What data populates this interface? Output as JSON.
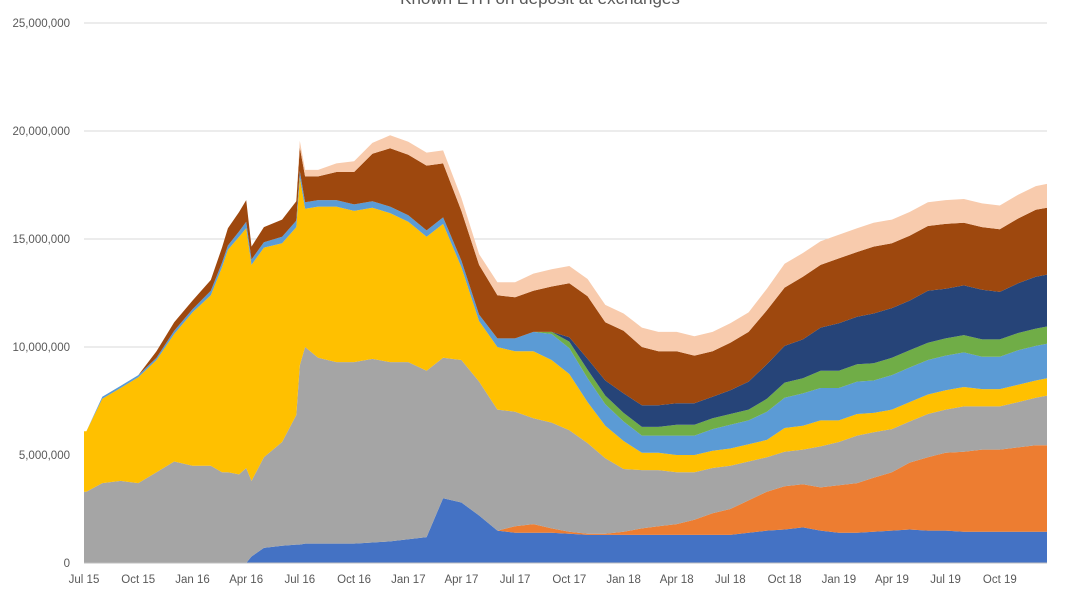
{
  "chart_data": {
    "type": "area",
    "stacked": true,
    "title": "Known ETH on deposit at exchanges",
    "xlabel": "",
    "ylabel": "",
    "ylim": [
      0,
      25000000
    ],
    "yticks": [
      0,
      5000000,
      10000000,
      15000000,
      20000000,
      25000000
    ],
    "ytick_labels": [
      "0",
      "5,000,000",
      "10,000,000",
      "15,000,000",
      "20,000,000",
      "25,000,000"
    ],
    "xlim": [
      "2015-07-01",
      "2019-12-20"
    ],
    "xtick_labels": [
      "Jul 15",
      "Oct 15",
      "Jan 16",
      "Apr 16",
      "Jul 16",
      "Oct 16",
      "Jan 17",
      "Apr 17",
      "Jul 17",
      "Oct 17",
      "Jan 18",
      "Apr 18",
      "Jul 18",
      "Oct 18",
      "Jan 19",
      "Apr 19",
      "Jul 19",
      "Oct 19"
    ],
    "xtick_dates": [
      "2015-07-01",
      "2015-10-01",
      "2016-01-01",
      "2016-04-01",
      "2016-07-01",
      "2016-10-01",
      "2017-01-01",
      "2017-04-01",
      "2017-07-01",
      "2017-10-01",
      "2018-01-01",
      "2018-04-01",
      "2018-07-01",
      "2018-10-01",
      "2019-01-01",
      "2019-04-01",
      "2019-07-01",
      "2019-10-01"
    ],
    "grid": "horizontal",
    "legend": "none",
    "x": [
      "2015-07-01",
      "2015-07-05",
      "2015-08-01",
      "2015-09-01",
      "2015-10-01",
      "2015-11-01",
      "2015-12-01",
      "2016-01-01",
      "2016-02-01",
      "2016-02-20",
      "2016-03-01",
      "2016-03-20",
      "2016-04-01",
      "2016-04-10",
      "2016-05-01",
      "2016-06-01",
      "2016-06-25",
      "2016-07-01",
      "2016-07-10",
      "2016-08-01",
      "2016-09-01",
      "2016-10-01",
      "2016-11-01",
      "2016-12-01",
      "2017-01-01",
      "2017-02-01",
      "2017-03-01",
      "2017-04-01",
      "2017-05-01",
      "2017-06-01",
      "2017-07-01",
      "2017-08-01",
      "2017-09-01",
      "2017-10-01",
      "2017-11-01",
      "2017-12-01",
      "2018-01-01",
      "2018-02-01",
      "2018-03-01",
      "2018-04-01",
      "2018-05-01",
      "2018-06-01",
      "2018-07-01",
      "2018-08-01",
      "2018-09-01",
      "2018-10-01",
      "2018-11-01",
      "2018-12-01",
      "2019-01-01",
      "2019-02-01",
      "2019-03-01",
      "2019-04-01",
      "2019-05-01",
      "2019-06-01",
      "2019-07-01",
      "2019-08-01",
      "2019-09-01",
      "2019-10-01",
      "2019-11-01",
      "2019-12-01",
      "2019-12-20"
    ],
    "series_colors": [
      "#4472C4",
      "#ED7D31",
      "#A5A5A5",
      "#FFC000",
      "#5B9BD5",
      "#70AD47",
      "#264478",
      "#9E480E",
      "#F8CBAD"
    ],
    "series": [
      {
        "values": [
          0,
          0,
          0,
          0,
          0,
          0,
          0,
          0,
          0,
          0,
          0,
          0,
          0,
          300000,
          700000,
          800000,
          850000,
          850000,
          900000,
          900000,
          900000,
          900000,
          950000,
          1000000,
          1100000,
          1200000,
          3000000,
          2800000,
          2200000,
          1500000,
          1400000,
          1400000,
          1400000,
          1350000,
          1300000,
          1300000,
          1300000,
          1300000,
          1300000,
          1300000,
          1300000,
          1300000,
          1300000,
          1400000,
          1500000,
          1550000,
          1650000,
          1500000,
          1400000,
          1400000,
          1450000,
          1500000,
          1550000,
          1500000,
          1500000,
          1450000,
          1450000,
          1450000,
          1450000,
          1450000,
          1450000
        ]
      },
      {
        "values": [
          0,
          0,
          0,
          0,
          0,
          0,
          0,
          0,
          0,
          0,
          0,
          0,
          0,
          0,
          0,
          0,
          0,
          0,
          0,
          0,
          0,
          0,
          0,
          0,
          0,
          0,
          0,
          0,
          0,
          0,
          300000,
          400000,
          200000,
          100000,
          50000,
          50000,
          150000,
          300000,
          400000,
          500000,
          700000,
          1000000,
          1200000,
          1500000,
          1800000,
          2000000,
          2000000,
          2000000,
          2200000,
          2300000,
          2500000,
          2700000,
          3100000,
          3400000,
          3600000,
          3700000,
          3800000,
          3800000,
          3900000,
          4000000,
          4000000
        ]
      },
      {
        "values": [
          3300000,
          3300000,
          3700000,
          3800000,
          3700000,
          4200000,
          4700000,
          4500000,
          4500000,
          4200000,
          4200000,
          4100000,
          4400000,
          3500000,
          4200000,
          4800000,
          6000000,
          8300000,
          9100000,
          8600000,
          8400000,
          8400000,
          8500000,
          8300000,
          8200000,
          7700000,
          6500000,
          6600000,
          6200000,
          5600000,
          5300000,
          4900000,
          4900000,
          4700000,
          4200000,
          3500000,
          2900000,
          2700000,
          2600000,
          2400000,
          2200000,
          2100000,
          2000000,
          1800000,
          1600000,
          1600000,
          1600000,
          1900000,
          2000000,
          2200000,
          2100000,
          2000000,
          1900000,
          2000000,
          2000000,
          2100000,
          2000000,
          2000000,
          2100000,
          2200000,
          2300000
        ]
      },
      {
        "values": [
          2800000,
          2800000,
          3900000,
          4300000,
          4900000,
          5200000,
          5900000,
          7100000,
          7900000,
          9500000,
          10300000,
          11000000,
          11100000,
          10000000,
          9700000,
          9200000,
          8700000,
          8700000,
          6400000,
          7000000,
          7200000,
          7000000,
          7000000,
          6900000,
          6500000,
          6200000,
          6200000,
          4300000,
          2800000,
          2900000,
          2800000,
          3100000,
          2900000,
          2600000,
          1900000,
          1500000,
          1300000,
          800000,
          800000,
          800000,
          800000,
          800000,
          800000,
          800000,
          800000,
          1100000,
          1100000,
          1200000,
          1000000,
          1000000,
          900000,
          900000,
          900000,
          900000,
          900000,
          900000,
          800000,
          800000,
          800000,
          800000,
          800000
        ]
      },
      {
        "values": [
          0,
          0,
          100000,
          100000,
          100000,
          100000,
          150000,
          150000,
          200000,
          200000,
          200000,
          250000,
          300000,
          250000,
          250000,
          300000,
          300000,
          300000,
          300000,
          300000,
          300000,
          300000,
          300000,
          300000,
          300000,
          300000,
          300000,
          300000,
          300000,
          400000,
          600000,
          900000,
          1200000,
          1200000,
          1100000,
          1000000,
          900000,
          800000,
          800000,
          900000,
          900000,
          1000000,
          1100000,
          1100000,
          1300000,
          1400000,
          1500000,
          1500000,
          1500000,
          1500000,
          1500000,
          1600000,
          1600000,
          1600000,
          1600000,
          1600000,
          1500000,
          1500000,
          1600000,
          1600000,
          1600000
        ]
      },
      {
        "values": [
          0,
          0,
          0,
          0,
          0,
          0,
          0,
          0,
          0,
          0,
          0,
          0,
          0,
          0,
          0,
          0,
          0,
          0,
          0,
          0,
          0,
          0,
          0,
          0,
          0,
          0,
          0,
          0,
          0,
          0,
          0,
          0,
          100000,
          300000,
          400000,
          400000,
          400000,
          400000,
          400000,
          500000,
          500000,
          500000,
          500000,
          500000,
          600000,
          700000,
          700000,
          800000,
          800000,
          800000,
          800000,
          800000,
          800000,
          800000,
          800000,
          800000,
          800000,
          800000,
          800000,
          800000,
          800000
        ]
      },
      {
        "values": [
          0,
          0,
          0,
          0,
          0,
          0,
          0,
          0,
          0,
          0,
          0,
          0,
          0,
          0,
          0,
          0,
          0,
          0,
          0,
          0,
          0,
          0,
          0,
          0,
          0,
          0,
          0,
          0,
          0,
          0,
          0,
          0,
          0,
          200000,
          500000,
          700000,
          900000,
          1000000,
          1000000,
          1000000,
          1000000,
          1000000,
          1100000,
          1300000,
          1600000,
          1700000,
          1800000,
          2000000,
          2200000,
          2200000,
          2300000,
          2300000,
          2300000,
          2400000,
          2300000,
          2300000,
          2300000,
          2200000,
          2300000,
          2400000,
          2400000
        ]
      },
      {
        "values": [
          0,
          0,
          0,
          0,
          0,
          0,
          0,
          0,
          0,
          0,
          0,
          0,
          0,
          0,
          0,
          0,
          0,
          0,
          0,
          0,
          0,
          0,
          0,
          0,
          0,
          0,
          0,
          0,
          0,
          0,
          0,
          0,
          0,
          0,
          0,
          0,
          0,
          0,
          0,
          0,
          0,
          0,
          0,
          0,
          0,
          0,
          0,
          0,
          0,
          0,
          0,
          0,
          0,
          0,
          0,
          0,
          0,
          0,
          0,
          0,
          0
        ]
      },
      {
        "values": [
          0,
          0,
          0,
          0,
          0,
          0,
          0,
          0,
          0,
          0,
          0,
          0,
          0,
          0,
          0,
          0,
          0,
          0,
          0,
          0,
          0,
          0,
          0,
          0,
          0,
          0,
          0,
          0,
          0,
          0,
          0,
          0,
          0,
          0,
          0,
          0,
          0,
          0,
          0,
          0,
          0,
          0,
          0,
          0,
          0,
          0,
          0,
          0,
          0,
          0,
          0,
          0,
          0,
          0,
          0,
          0,
          0,
          0,
          0,
          0,
          0
        ]
      }
    ],
    "series_extra": {
      "s7": [
        0,
        0,
        0,
        0,
        0,
        300000,
        400000,
        400000,
        500000,
        700000,
        800000,
        900000,
        1000000,
        600000,
        700000,
        800000,
        900000,
        1100000,
        1200000,
        1100000,
        1300000,
        1500000,
        2200000,
        2700000,
        2800000,
        3000000,
        2500000,
        2300000,
        2300000,
        2000000,
        1900000,
        1900000,
        2100000,
        2500000,
        2900000,
        2700000,
        2900000,
        2700000,
        2500000,
        2400000,
        2200000,
        2100000,
        2200000,
        2300000,
        2500000,
        2700000,
        2900000,
        2900000,
        3000000,
        3000000,
        3100000,
        3000000,
        3000000,
        3000000,
        3000000,
        2900000,
        2900000,
        2900000,
        3000000,
        3100000,
        3100000
      ],
      "s8": [
        0,
        0,
        0,
        0,
        0,
        0,
        0,
        0,
        0,
        0,
        0,
        0,
        0,
        0,
        0,
        0,
        0,
        300000,
        300000,
        300000,
        400000,
        500000,
        500000,
        600000,
        600000,
        600000,
        600000,
        600000,
        500000,
        600000,
        700000,
        800000,
        800000,
        800000,
        800000,
        800000,
        800000,
        900000,
        900000,
        900000,
        900000,
        900000,
        900000,
        900000,
        1000000,
        1100000,
        1100000,
        1100000,
        1100000,
        1100000,
        1100000,
        1100000,
        1100000,
        1100000,
        1100000,
        1100000,
        1100000,
        1100000,
        1100000,
        1100000,
        1100000
      ]
    }
  }
}
